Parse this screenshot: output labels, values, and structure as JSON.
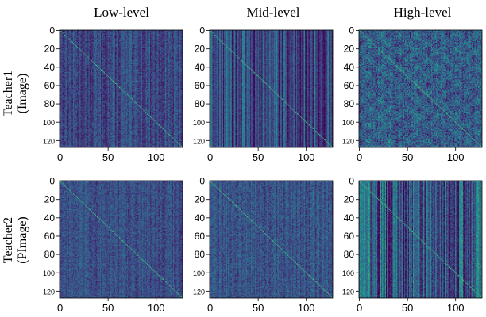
{
  "colormap": [
    "#440154",
    "#3b528b",
    "#21918c",
    "#5ec962",
    "#fde725"
  ],
  "background_color": "#3b3f8f",
  "chart_data": [
    {
      "type": "heatmap",
      "column": "Low-level",
      "row": "Teacher1 (Image)",
      "xticks": [
        0,
        50,
        100
      ],
      "yticks": [
        0,
        20,
        40,
        60,
        80,
        100,
        120
      ],
      "xlim": [
        0,
        127
      ],
      "ylim": [
        0,
        127
      ],
      "size": 128,
      "diagonal": true,
      "texture": "vertical-stripes",
      "base_level": 0.22,
      "noise": 0.1,
      "stripe_strength": 0.1
    },
    {
      "type": "heatmap",
      "column": "Mid-level",
      "row": "Teacher1 (Image)",
      "xticks": [
        0,
        50,
        100
      ],
      "yticks": [
        0,
        20,
        40,
        60,
        80,
        100,
        120
      ],
      "xlim": [
        0,
        127
      ],
      "ylim": [
        0,
        127
      ],
      "size": 128,
      "diagonal": true,
      "texture": "vertical-stripes",
      "base_level": 0.24,
      "noise": 0.07,
      "stripe_strength": 0.22
    },
    {
      "type": "heatmap",
      "column": "High-level",
      "row": "Teacher1 (Image)",
      "xticks": [
        0,
        50,
        100
      ],
      "yticks": [
        0,
        20,
        40,
        60,
        80,
        100,
        120
      ],
      "xlim": [
        0,
        127
      ],
      "ylim": [
        0,
        127
      ],
      "size": 128,
      "diagonal": true,
      "texture": "blocky-noise",
      "base_level": 0.3,
      "noise": 0.18,
      "stripe_strength": 0.05
    },
    {
      "type": "heatmap",
      "column": "Low-level",
      "row": "Teacher2 (PImage)",
      "xticks": [
        0,
        50,
        100
      ],
      "yticks": [
        0,
        20,
        40,
        60,
        80,
        100,
        120
      ],
      "xlim": [
        0,
        127
      ],
      "ylim": [
        0,
        127
      ],
      "size": 128,
      "diagonal": true,
      "texture": "fine-noise",
      "base_level": 0.24,
      "noise": 0.1,
      "stripe_strength": 0.06
    },
    {
      "type": "heatmap",
      "column": "Mid-level",
      "row": "Teacher2 (PImage)",
      "xticks": [
        0,
        50,
        100
      ],
      "yticks": [
        0,
        20,
        40,
        60,
        80,
        100,
        120
      ],
      "xlim": [
        0,
        127
      ],
      "ylim": [
        0,
        127
      ],
      "size": 128,
      "diagonal": true,
      "texture": "fine-noise",
      "base_level": 0.26,
      "noise": 0.11,
      "stripe_strength": 0.07
    },
    {
      "type": "heatmap",
      "column": "High-level",
      "row": "Teacher2 (PImage)",
      "xticks": [
        0,
        50,
        100
      ],
      "yticks": [
        0,
        20,
        40,
        60,
        80,
        100,
        120
      ],
      "xlim": [
        0,
        127
      ],
      "ylim": [
        0,
        127
      ],
      "size": 128,
      "diagonal": true,
      "texture": "vertical-stripes",
      "base_level": 0.26,
      "noise": 0.1,
      "stripe_strength": 0.28
    }
  ],
  "column_titles": [
    "Low-level",
    "Mid-level",
    "High-level"
  ],
  "row_titles": [
    {
      "line1": "Teacher1",
      "line2": "(Image)"
    },
    {
      "line1": "Teacher2",
      "line2": "(PImage)"
    }
  ]
}
